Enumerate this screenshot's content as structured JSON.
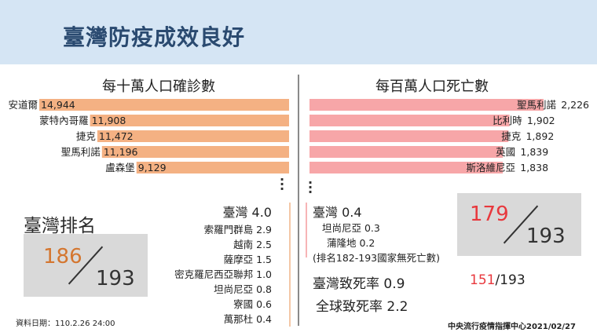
{
  "header": {
    "title": "臺灣防疫成效良好"
  },
  "left": {
    "title": "每十萬人口確診數",
    "rank_label": "臺灣排名",
    "rank": "186",
    "rank_total": "193",
    "taiwan": "臺灣 4.0",
    "list": [
      {
        "label": "索羅門群島 2.9"
      },
      {
        "label": "越南 2.5"
      },
      {
        "label": "薩摩亞 1.5"
      },
      {
        "label": "密克羅尼西亞聯邦 1.0"
      },
      {
        "label": "坦尚尼亞 0.8"
      },
      {
        "label": "寮國 0.6"
      },
      {
        "label": "萬那杜 0.4"
      }
    ]
  },
  "right": {
    "title": "每百萬人口死亡數",
    "rank": "179",
    "rank_total": "193",
    "taiwan": "臺灣 0.4",
    "list": [
      {
        "label": "坦尚尼亞 0.3"
      },
      {
        "label": "蒲隆地 0.2"
      },
      {
        "label": "(排名182-193國家無死亡數)"
      }
    ],
    "fatality_label": "臺灣致死率 0.9",
    "fatality_rank": "151",
    "fatality_total": "/193",
    "global_fatality": "全球致死率 2.2"
  },
  "footer": {
    "date": "資料日期：110.2.26 24:00",
    "source": "中央流行疫情指揮中心2021/02/27"
  },
  "colors": {
    "orange_bar": "#f4b183",
    "pink_bar": "#f7a6a8",
    "orange_text": "#d4762f",
    "red_text": "#e8383d"
  },
  "chart_data": [
    {
      "type": "bar",
      "title": "每十萬人口確診數",
      "categories": [
        "安道爾",
        "蒙特內哥羅",
        "捷克",
        "聖馬利諾",
        "盧森堡"
      ],
      "values": [
        14944,
        11908,
        11472,
        11196,
        9129
      ],
      "value_labels": [
        "14,944",
        "11,908",
        "11,472",
        "11,196",
        "9,129"
      ]
    },
    {
      "type": "bar",
      "title": "每百萬人口死亡數",
      "categories": [
        "聖馬利諾",
        "比利時",
        "捷克",
        "英國",
        "斯洛維尼亞"
      ],
      "values": [
        2226,
        1902,
        1892,
        1839,
        1838
      ],
      "value_labels": [
        "2,226",
        "1,902",
        "1,892",
        "1,839",
        "1,838"
      ]
    }
  ]
}
